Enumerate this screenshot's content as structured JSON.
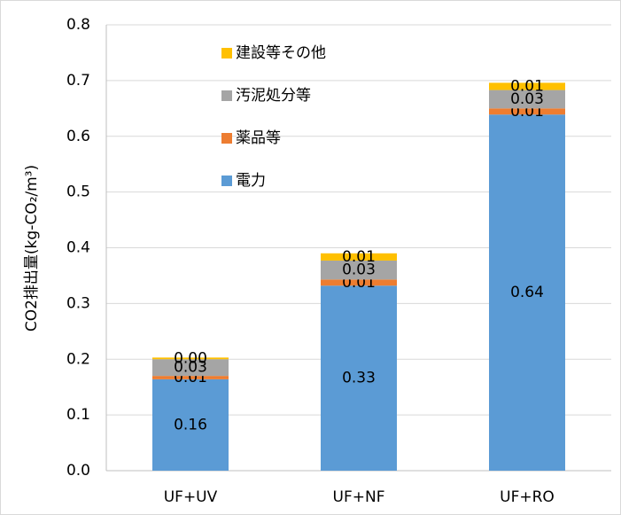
{
  "chart_data": {
    "type": "stacked_bar",
    "y_label": "CO2排出量(kg-CO₂/m³)",
    "categories": [
      "UF+UV",
      "UF+NF",
      "UF+RO"
    ],
    "series": [
      {
        "name": "電力",
        "color": "#5b9bd5",
        "values": [
          0.164,
          0.332,
          0.639
        ],
        "value_labels": [
          "0.16",
          "0.33",
          "0.64"
        ]
      },
      {
        "name": "薬品等",
        "color": "#ed7d31",
        "values": [
          0.006,
          0.011,
          0.011
        ],
        "value_labels": [
          "0.01",
          "0.01",
          "0.01"
        ]
      },
      {
        "name": "汚泥処分等",
        "color": "#a5a5a5",
        "values": [
          0.03,
          0.034,
          0.033
        ],
        "value_labels": [
          "0.03",
          "0.03",
          "0.03"
        ]
      },
      {
        "name": "建設等その他",
        "color": "#ffc000",
        "values": [
          0.003,
          0.013,
          0.013
        ],
        "value_labels": [
          "0.00",
          "0.01",
          "0.01"
        ]
      }
    ],
    "ylim": [
      0,
      0.8
    ],
    "yticks": [
      {
        "value": 0,
        "label": "0.0"
      },
      0.1,
      0.2,
      0.3,
      0.4,
      0.5,
      0.6,
      0.7,
      0.8
    ],
    "grid": true,
    "legend": "top-left"
  }
}
